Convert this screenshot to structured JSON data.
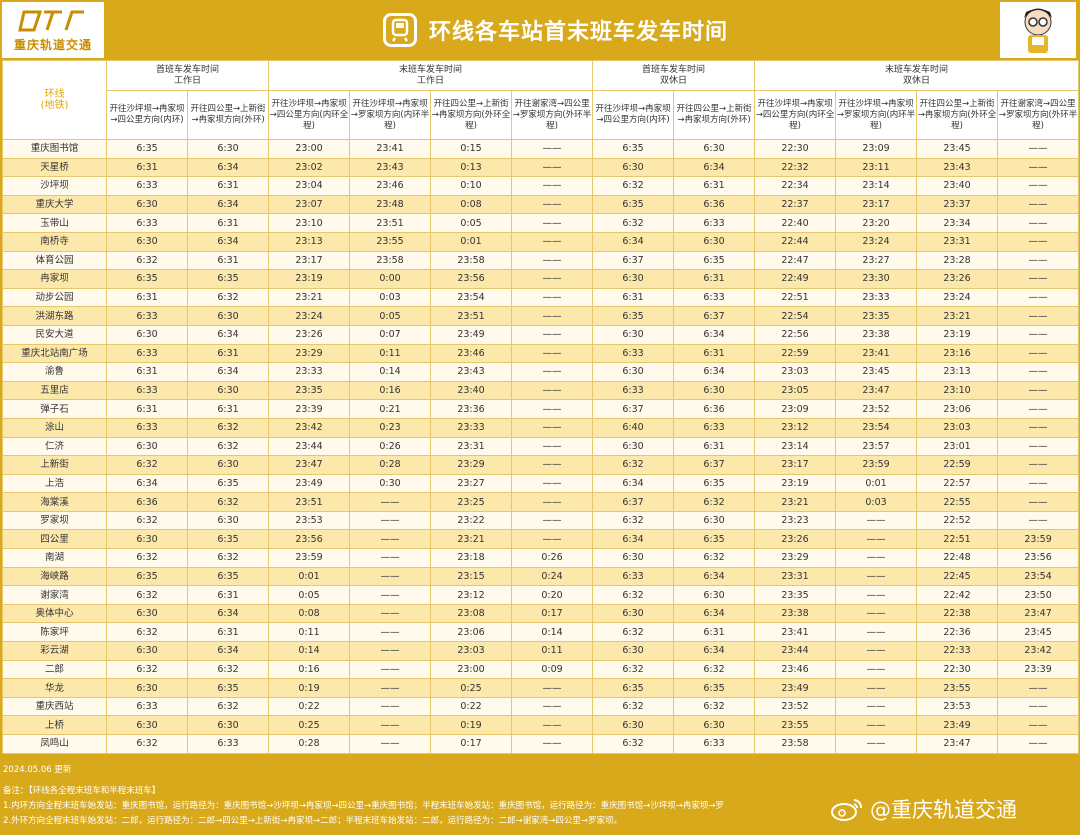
{
  "header": {
    "logo_text": "重庆轨道交通",
    "title": "环线各车站首末班车发车时间"
  },
  "table": {
    "corner_line1": "环线",
    "corner_line2": "(地铁)",
    "groups": [
      {
        "line1": "首班车发车时间",
        "line2": "工作日"
      },
      {
        "line1": "末班车发车时间",
        "line2": "工作日"
      },
      {
        "line1": "首班车发车时间",
        "line2": "双休日"
      },
      {
        "line1": "末班车发车时间",
        "line2": "双休日"
      }
    ],
    "subheaders": [
      "开往沙坪坝→冉家坝→四公里方向(内环)",
      "开往四公里→上新街→冉家坝方向(外环)",
      "开往沙坪坝→冉家坝→四公里方向(内环全程)",
      "开往沙坪坝→冉家坝→罗家坝方向(内环半程)",
      "开往四公里→上新街→冉家坝方向(外环全程)",
      "开往谢家湾→四公里→罗家坝方向(外环半程)",
      "开往沙坪坝→冉家坝→四公里方向(内环)",
      "开往四公里→上新街→冉家坝方向(外环)",
      "开往沙坪坝→冉家坝→四公里方向(内环全程)",
      "开往沙坪坝→冉家坝→罗家坝方向(内环半程)",
      "开往四公里→上新街→冉家坝方向(外环全程)",
      "开往谢家湾→四公里→罗家坝方向(外环半程)"
    ],
    "rows": [
      [
        "重庆图书馆",
        "6:35",
        "6:30",
        "23:00",
        "23:41",
        "0:15",
        "——",
        "6:35",
        "6:30",
        "22:30",
        "23:09",
        "23:45",
        "——"
      ],
      [
        "天星桥",
        "6:31",
        "6:34",
        "23:02",
        "23:43",
        "0:13",
        "——",
        "6:30",
        "6:34",
        "22:32",
        "23:11",
        "23:43",
        "——"
      ],
      [
        "沙坪坝",
        "6:33",
        "6:31",
        "23:04",
        "23:46",
        "0:10",
        "——",
        "6:32",
        "6:31",
        "22:34",
        "23:14",
        "23:40",
        "——"
      ],
      [
        "重庆大学",
        "6:30",
        "6:34",
        "23:07",
        "23:48",
        "0:08",
        "——",
        "6:35",
        "6:36",
        "22:37",
        "23:17",
        "23:37",
        "——"
      ],
      [
        "玉带山",
        "6:33",
        "6:31",
        "23:10",
        "23:51",
        "0:05",
        "——",
        "6:32",
        "6:33",
        "22:40",
        "23:20",
        "23:34",
        "——"
      ],
      [
        "南桥寺",
        "6:30",
        "6:34",
        "23:13",
        "23:55",
        "0:01",
        "——",
        "6:34",
        "6:30",
        "22:44",
        "23:24",
        "23:31",
        "——"
      ],
      [
        "体育公园",
        "6:32",
        "6:31",
        "23:17",
        "23:58",
        "23:58",
        "——",
        "6:37",
        "6:35",
        "22:47",
        "23:27",
        "23:28",
        "——"
      ],
      [
        "冉家坝",
        "6:35",
        "6:35",
        "23:19",
        "0:00",
        "23:56",
        "——",
        "6:30",
        "6:31",
        "22:49",
        "23:30",
        "23:26",
        "——"
      ],
      [
        "动步公园",
        "6:31",
        "6:32",
        "23:21",
        "0:03",
        "23:54",
        "——",
        "6:31",
        "6:33",
        "22:51",
        "23:33",
        "23:24",
        "——"
      ],
      [
        "洪湖东路",
        "6:33",
        "6:30",
        "23:24",
        "0:05",
        "23:51",
        "——",
        "6:35",
        "6:37",
        "22:54",
        "23:35",
        "23:21",
        "——"
      ],
      [
        "民安大道",
        "6:30",
        "6:34",
        "23:26",
        "0:07",
        "23:49",
        "——",
        "6:30",
        "6:34",
        "22:56",
        "23:38",
        "23:19",
        "——"
      ],
      [
        "重庆北站南广场",
        "6:33",
        "6:31",
        "23:29",
        "0:11",
        "23:46",
        "——",
        "6:33",
        "6:31",
        "22:59",
        "23:41",
        "23:16",
        "——"
      ],
      [
        "渝鲁",
        "6:31",
        "6:34",
        "23:33",
        "0:14",
        "23:43",
        "——",
        "6:30",
        "6:34",
        "23:03",
        "23:45",
        "23:13",
        "——"
      ],
      [
        "五里店",
        "6:33",
        "6:30",
        "23:35",
        "0:16",
        "23:40",
        "——",
        "6:33",
        "6:30",
        "23:05",
        "23:47",
        "23:10",
        "——"
      ],
      [
        "弹子石",
        "6:31",
        "6:31",
        "23:39",
        "0:21",
        "23:36",
        "——",
        "6:37",
        "6:36",
        "23:09",
        "23:52",
        "23:06",
        "——"
      ],
      [
        "涂山",
        "6:33",
        "6:32",
        "23:42",
        "0:23",
        "23:33",
        "——",
        "6:40",
        "6:33",
        "23:12",
        "23:54",
        "23:03",
        "——"
      ],
      [
        "仁济",
        "6:30",
        "6:32",
        "23:44",
        "0:26",
        "23:31",
        "——",
        "6:30",
        "6:31",
        "23:14",
        "23:57",
        "23:01",
        "——"
      ],
      [
        "上新街",
        "6:32",
        "6:30",
        "23:47",
        "0:28",
        "23:29",
        "——",
        "6:32",
        "6:37",
        "23:17",
        "23:59",
        "22:59",
        "——"
      ],
      [
        "上浩",
        "6:34",
        "6:35",
        "23:49",
        "0:30",
        "23:27",
        "——",
        "6:34",
        "6:35",
        "23:19",
        "0:01",
        "22:57",
        "——"
      ],
      [
        "海棠溪",
        "6:36",
        "6:32",
        "23:51",
        "——",
        "23:25",
        "——",
        "6:37",
        "6:32",
        "23:21",
        "0:03",
        "22:55",
        "——"
      ],
      [
        "罗家坝",
        "6:32",
        "6:30",
        "23:53",
        "——",
        "23:22",
        "——",
        "6:32",
        "6:30",
        "23:23",
        "——",
        "22:52",
        "——"
      ],
      [
        "四公里",
        "6:30",
        "6:35",
        "23:56",
        "——",
        "23:21",
        "——",
        "6:34",
        "6:35",
        "23:26",
        "——",
        "22:51",
        "23:59"
      ],
      [
        "南湖",
        "6:32",
        "6:32",
        "23:59",
        "——",
        "23:18",
        "0:26",
        "6:30",
        "6:32",
        "23:29",
        "——",
        "22:48",
        "23:56"
      ],
      [
        "海峡路",
        "6:35",
        "6:35",
        "0:01",
        "——",
        "23:15",
        "0:24",
        "6:33",
        "6:34",
        "23:31",
        "——",
        "22:45",
        "23:54"
      ],
      [
        "谢家湾",
        "6:32",
        "6:31",
        "0:05",
        "——",
        "23:12",
        "0:20",
        "6:32",
        "6:30",
        "23:35",
        "——",
        "22:42",
        "23:50"
      ],
      [
        "奥体中心",
        "6:30",
        "6:34",
        "0:08",
        "——",
        "23:08",
        "0:17",
        "6:30",
        "6:34",
        "23:38",
        "——",
        "22:38",
        "23:47"
      ],
      [
        "陈家坪",
        "6:32",
        "6:31",
        "0:11",
        "——",
        "23:06",
        "0:14",
        "6:32",
        "6:31",
        "23:41",
        "——",
        "22:36",
        "23:45"
      ],
      [
        "彩云湖",
        "6:30",
        "6:34",
        "0:14",
        "——",
        "23:03",
        "0:11",
        "6:30",
        "6:34",
        "23:44",
        "——",
        "22:33",
        "23:42"
      ],
      [
        "二郎",
        "6:32",
        "6:32",
        "0:16",
        "——",
        "23:00",
        "0:09",
        "6:32",
        "6:32",
        "23:46",
        "——",
        "22:30",
        "23:39"
      ],
      [
        "华龙",
        "6:30",
        "6:35",
        "0:19",
        "——",
        "0:25",
        "——",
        "6:35",
        "6:35",
        "23:49",
        "——",
        "23:55",
        "——"
      ],
      [
        "重庆西站",
        "6:33",
        "6:32",
        "0:22",
        "——",
        "0:22",
        "——",
        "6:32",
        "6:32",
        "23:52",
        "——",
        "23:53",
        "——"
      ],
      [
        "上桥",
        "6:30",
        "6:30",
        "0:25",
        "——",
        "0:19",
        "——",
        "6:30",
        "6:30",
        "23:55",
        "——",
        "23:49",
        "——"
      ],
      [
        "凤鸣山",
        "6:32",
        "6:33",
        "0:28",
        "——",
        "0:17",
        "——",
        "6:32",
        "6:33",
        "23:58",
        "——",
        "23:47",
        "——"
      ]
    ]
  },
  "footer": {
    "updated": "2024.05.06 更新",
    "note_head": "备注：【环线各全程末班车和半程末班车】",
    "note1": "1.内环方向全程末班车始发站：重庆图书馆，运行路径为：重庆图书馆→沙坪坝→冉家坝→四公里→重庆图书馆；半程末班车始发站：重庆图书馆，运行路径为：重庆图书馆→沙坪坝→冉家坝→罗",
    "note2": "2.外环方向全程末班车始发站：二郎，运行路径为：二郎→四公里→上新街→冉家坝→二郎；半程末班车始发站：二郎，运行路径为：二郎→谢家湾→四公里→罗家坝。"
  },
  "watermark": {
    "text": "@重庆轨道交通"
  },
  "colors": {
    "brand_gold": "#d9a91c",
    "row_light": "#fffaeb",
    "row_dark": "#fde8ac",
    "grid": "#e7c76b"
  }
}
